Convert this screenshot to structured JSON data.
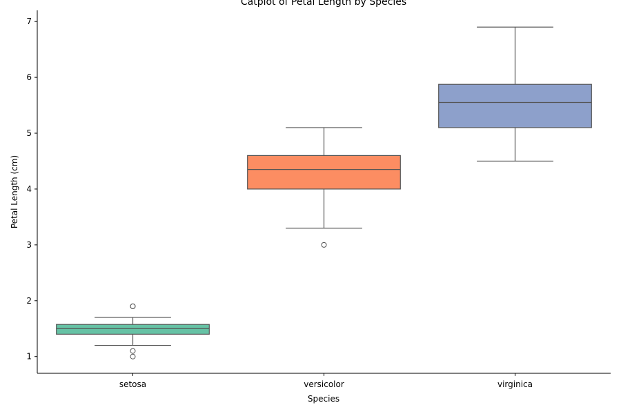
{
  "chart_data": {
    "type": "box",
    "title": "Catplot of Petal Length by Species",
    "xlabel": "Species",
    "ylabel": "Petal Length (cm)",
    "ylim": [
      0.7,
      7.2
    ],
    "yticks": [
      "1",
      "2",
      "3",
      "4",
      "5",
      "6",
      "7"
    ],
    "grid": false,
    "categories": [
      "setosa",
      "versicolor",
      "virginica"
    ],
    "colors": [
      "#66c2a5",
      "#fc8d62",
      "#8da0cb"
    ],
    "boxes": [
      {
        "category": "setosa",
        "whisker_low": 1.2,
        "q1": 1.4,
        "median": 1.5,
        "q3": 1.575,
        "whisker_high": 1.7,
        "outliers": [
          1.0,
          1.1,
          1.9,
          1.9
        ]
      },
      {
        "category": "versicolor",
        "whisker_low": 3.3,
        "q1": 4.0,
        "median": 4.35,
        "q3": 4.6,
        "whisker_high": 5.1,
        "outliers": [
          3.0
        ]
      },
      {
        "category": "virginica",
        "whisker_low": 4.5,
        "q1": 5.1,
        "median": 5.55,
        "q3": 5.875,
        "whisker_high": 6.9,
        "outliers": []
      }
    ]
  }
}
